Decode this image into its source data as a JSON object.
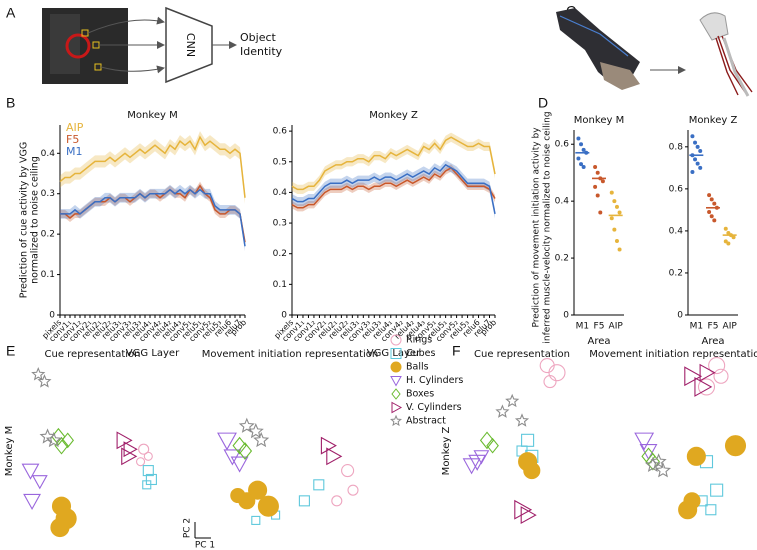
{
  "panel_labels": [
    "A",
    "B",
    "C",
    "D",
    "E",
    "F"
  ],
  "diagram_a": {
    "box_label": "CNN",
    "output": [
      "Object",
      "Identity"
    ]
  },
  "scale_bar": {
    "y": "PC 2",
    "x": "PC 1"
  },
  "legend": {
    "items": [
      {
        "name": "Rings",
        "color": "#eea6c0",
        "marker": "ring"
      },
      {
        "name": "Cubes",
        "color": "#5fc8dc",
        "marker": "square"
      },
      {
        "name": "Balls",
        "color": "#e0a820",
        "marker": "ball"
      },
      {
        "name": "H. Cylinders",
        "color": "#9a66dd",
        "marker": "tri-down"
      },
      {
        "name": "Boxes",
        "color": "#6abb30",
        "marker": "diamond"
      },
      {
        "name": "V. Cylinders",
        "color": "#a0206a",
        "marker": "tri-right"
      },
      {
        "name": "Abstract",
        "color": "#8c8c8c",
        "marker": "star"
      }
    ]
  },
  "chart_data": [
    {
      "type": "line",
      "title": "Monkey M",
      "xlabel": "VGG Layer",
      "ylabel": [
        "Prediction of cue activity by VGG",
        "normalized to noise ceiling"
      ],
      "categories": [
        "pixels",
        null,
        "conv1₁",
        null,
        "conv1₂",
        null,
        "conv2₁",
        null,
        "relu2₁",
        null,
        "relu2₂",
        null,
        "relu3₁",
        null,
        "conv3₃",
        null,
        "relu3₃",
        null,
        "relu4₁",
        null,
        "conv4₂",
        null,
        "relu4₂",
        null,
        "relu4₃",
        null,
        "conv5₁",
        null,
        "relu5₁",
        null,
        "conv5₂",
        null,
        "relu5₃",
        null,
        "relu6",
        null,
        "relu7",
        "prob"
      ],
      "series": [
        {
          "name": "AIP",
          "color": "#e6b43c",
          "spread": 0.015,
          "values": [
            0.33,
            0.34,
            0.34,
            0.35,
            0.35,
            0.36,
            0.37,
            0.38,
            0.38,
            0.38,
            0.39,
            0.38,
            0.39,
            0.4,
            0.39,
            0.4,
            0.41,
            0.4,
            0.41,
            0.42,
            0.41,
            0.4,
            0.42,
            0.41,
            0.43,
            0.42,
            0.43,
            0.41,
            0.44,
            0.42,
            0.43,
            0.42,
            0.41,
            0.41,
            0.4,
            0.41,
            0.4,
            0.29
          ]
        },
        {
          "name": "F5",
          "color": "#c8582c",
          "spread": 0.01,
          "values": [
            0.25,
            0.25,
            0.24,
            0.25,
            0.25,
            0.26,
            0.27,
            0.28,
            0.28,
            0.28,
            0.29,
            0.28,
            0.29,
            0.29,
            0.28,
            0.29,
            0.3,
            0.29,
            0.3,
            0.3,
            0.29,
            0.3,
            0.31,
            0.3,
            0.3,
            0.29,
            0.31,
            0.3,
            0.32,
            0.3,
            0.29,
            0.26,
            0.25,
            0.25,
            0.26,
            0.26,
            0.25,
            0.18
          ]
        },
        {
          "name": "M1",
          "color": "#3a6fc4",
          "spread": 0.012,
          "values": [
            0.25,
            0.25,
            0.25,
            0.26,
            0.25,
            0.26,
            0.27,
            0.28,
            0.28,
            0.29,
            0.29,
            0.28,
            0.29,
            0.29,
            0.29,
            0.29,
            0.3,
            0.29,
            0.3,
            0.3,
            0.3,
            0.3,
            0.31,
            0.3,
            0.31,
            0.3,
            0.31,
            0.3,
            0.31,
            0.3,
            0.3,
            0.27,
            0.26,
            0.26,
            0.26,
            0.26,
            0.25,
            0.17
          ]
        }
      ],
      "ylim": [
        0,
        0.47
      ],
      "yticks": [
        0,
        0.1,
        0.2,
        0.3,
        0.4
      ]
    },
    {
      "type": "line",
      "title": "Monkey Z",
      "xlabel": "VGG Layer",
      "categories": [
        "pixels",
        null,
        "conv1₁",
        null,
        "conv1₂",
        null,
        "conv2₁",
        null,
        "relu2₁",
        null,
        "relu2₂",
        null,
        "relu3₁",
        null,
        "conv3₃",
        null,
        "relu3₃",
        null,
        "relu4₁",
        null,
        "conv4₂",
        null,
        "relu4₂",
        null,
        "relu4₃",
        null,
        "conv5₁",
        null,
        "relu5₁",
        null,
        "conv5₂",
        null,
        "relu5₃",
        null,
        "relu6",
        null,
        "relu7",
        "prob"
      ],
      "series": [
        {
          "color": "#e6b43c",
          "spread": 0.015,
          "values": [
            0.42,
            0.41,
            0.41,
            0.42,
            0.42,
            0.44,
            0.47,
            0.48,
            0.49,
            0.49,
            0.5,
            0.5,
            0.51,
            0.51,
            0.5,
            0.52,
            0.52,
            0.51,
            0.53,
            0.52,
            0.53,
            0.54,
            0.53,
            0.52,
            0.55,
            0.54,
            0.56,
            0.54,
            0.57,
            0.58,
            0.57,
            0.56,
            0.55,
            0.55,
            0.56,
            0.55,
            0.55,
            0.46
          ]
        },
        {
          "color": "#c8582c",
          "spread": 0.012,
          "values": [
            0.36,
            0.35,
            0.35,
            0.36,
            0.36,
            0.38,
            0.4,
            0.41,
            0.41,
            0.41,
            0.42,
            0.41,
            0.42,
            0.42,
            0.41,
            0.42,
            0.42,
            0.43,
            0.43,
            0.42,
            0.43,
            0.44,
            0.43,
            0.44,
            0.45,
            0.44,
            0.46,
            0.45,
            0.47,
            0.48,
            0.46,
            0.44,
            0.42,
            0.42,
            0.42,
            0.42,
            0.41,
            0.38
          ]
        },
        {
          "color": "#3a6fc4",
          "spread": 0.015,
          "values": [
            0.38,
            0.37,
            0.37,
            0.38,
            0.38,
            0.4,
            0.42,
            0.43,
            0.43,
            0.43,
            0.44,
            0.43,
            0.44,
            0.44,
            0.44,
            0.45,
            0.44,
            0.45,
            0.45,
            0.44,
            0.45,
            0.46,
            0.45,
            0.46,
            0.47,
            0.46,
            0.48,
            0.47,
            0.49,
            0.48,
            0.47,
            0.45,
            0.43,
            0.43,
            0.43,
            0.43,
            0.42,
            0.33
          ]
        }
      ],
      "ylim": [
        0,
        0.62
      ],
      "yticks": [
        0,
        0.1,
        0.2,
        0.3,
        0.4,
        0.5,
        0.6
      ]
    },
    {
      "type": "strip",
      "title": "Monkey M",
      "xlabel": "Area",
      "ylabel": [
        "Prediction of movement initiation activity by",
        "inferred muscle-velocity normalized to noise ceiling"
      ],
      "categories": [
        "M1",
        "F5",
        "AIP"
      ],
      "colors": [
        "#3a6fc4",
        "#c8582c",
        "#e6b43c"
      ],
      "groups": [
        [
          0.62,
          0.6,
          0.58,
          0.57,
          0.55,
          0.53,
          0.52
        ],
        [
          0.52,
          0.5,
          0.48,
          0.47,
          0.45,
          0.42,
          0.36
        ],
        [
          0.43,
          0.4,
          0.38,
          0.36,
          0.34,
          0.3,
          0.26,
          0.23
        ]
      ],
      "medians": [
        0.57,
        0.48,
        0.35
      ],
      "ylim": [
        0,
        0.65
      ],
      "yticks": [
        0,
        0.2,
        0.4,
        0.6
      ]
    },
    {
      "type": "strip",
      "title": "Monkey Z",
      "xlabel": "Area",
      "categories": [
        "M1",
        "F5",
        "AIP"
      ],
      "colors": [
        "#3a6fc4",
        "#c8582c",
        "#e6b43c"
      ],
      "groups": [
        [
          0.85,
          0.82,
          0.8,
          0.78,
          0.76,
          0.74,
          0.72,
          0.7,
          0.68
        ],
        [
          0.57,
          0.55,
          0.53,
          0.51,
          0.49,
          0.47,
          0.45
        ],
        [
          0.41,
          0.39,
          0.38,
          0.37,
          0.35,
          0.34
        ]
      ],
      "medians": [
        0.76,
        0.51,
        0.38
      ],
      "ylim": [
        0,
        0.88
      ],
      "yticks": [
        0,
        0.2,
        0.4,
        0.6,
        0.8
      ]
    },
    {
      "type": "scatter",
      "title": "Cue representation",
      "ylabel": "Monkey M",
      "xlim": [
        0,
        100
      ],
      "ylim": [
        0,
        100
      ],
      "series": [
        {
          "x": [
            83,
            86,
            81
          ],
          "y": [
            51,
            47,
            44
          ],
          "size": [
            5,
            4,
            4
          ]
        },
        {
          "x": [
            86,
            88,
            85
          ],
          "y": [
            39,
            34,
            31
          ],
          "size": [
            5,
            5,
            4
          ]
        },
        {
          "x": [
            30,
            33,
            29
          ],
          "y": [
            19,
            12,
            7
          ],
          "size": [
            9,
            10,
            9
          ]
        },
        {
          "x": [
            10,
            16,
            11
          ],
          "y": [
            39,
            33,
            22
          ],
          "size": [
            8,
            7,
            8
          ]
        },
        {
          "x": [
            28,
            30,
            34
          ],
          "y": [
            58,
            53,
            56
          ],
          "size": [
            8,
            8,
            7
          ]
        },
        {
          "x": [
            70,
            73,
            74
          ],
          "y": [
            56,
            47,
            51
          ],
          "size": [
            8,
            8,
            7
          ]
        },
        {
          "x": [
            15,
            19,
            21,
            25
          ],
          "y": [
            93,
            89,
            58,
            56
          ],
          "size": [
            6,
            6,
            7,
            7
          ]
        }
      ]
    },
    {
      "type": "scatter",
      "title": "Movement initiation representation",
      "xlim": [
        0,
        100
      ],
      "ylim": [
        0,
        100
      ],
      "series": [
        {
          "x": [
            82,
            85,
            76
          ],
          "y": [
            39,
            28,
            22
          ],
          "size": [
            6,
            5,
            5
          ]
        },
        {
          "x": [
            66,
            58,
            42,
            31
          ],
          "y": [
            31,
            22,
            14,
            11
          ],
          "size": [
            5,
            5,
            4,
            4
          ]
        },
        {
          "x": [
            26,
            32,
            21,
            38
          ],
          "y": [
            22,
            28,
            25,
            19
          ],
          "size": [
            8,
            9,
            7,
            10
          ]
        },
        {
          "x": [
            15,
            18,
            22
          ],
          "y": [
            56,
            47,
            43
          ],
          "size": [
            9,
            8,
            8
          ]
        },
        {
          "x": [
            22,
            25
          ],
          "y": [
            53,
            50
          ],
          "size": [
            8,
            8
          ]
        },
        {
          "x": [
            71,
            74
          ],
          "y": [
            53,
            47
          ],
          "size": [
            8,
            8
          ]
        },
        {
          "x": [
            26,
            31,
            34
          ],
          "y": [
            64,
            61,
            56
          ],
          "size": [
            7,
            7,
            7
          ]
        }
      ]
    },
    {
      "type": "scatter",
      "title": "Cue representation",
      "ylabel": "Monkey Z",
      "xlim": [
        0,
        100
      ],
      "ylim": [
        0,
        100
      ],
      "series": [
        {
          "x": [
            68,
            75,
            70
          ],
          "y": [
            98,
            94,
            89
          ],
          "size": [
            7,
            8,
            6
          ]
        },
        {
          "x": [
            54,
            57,
            50
          ],
          "y": [
            56,
            47,
            50
          ],
          "size": [
            6,
            6,
            5
          ]
        },
        {
          "x": [
            54,
            57
          ],
          "y": [
            44,
            39
          ],
          "size": [
            9,
            8
          ]
        },
        {
          "x": [
            18,
            21,
            14
          ],
          "y": [
            44,
            47,
            42
          ],
          "size": [
            8,
            7,
            8
          ]
        },
        {
          "x": [
            25,
            29
          ],
          "y": [
            56,
            53
          ],
          "size": [
            8,
            7
          ]
        },
        {
          "x": [
            50,
            54
          ],
          "y": [
            17,
            14
          ],
          "size": [
            9,
            8
          ]
        },
        {
          "x": [
            36,
            43,
            50
          ],
          "y": [
            72,
            78,
            67
          ],
          "size": [
            6,
            6,
            6
          ]
        }
      ]
    },
    {
      "type": "scatter",
      "title": "Movement initiation representation",
      "xlim": [
        0,
        100
      ],
      "ylim": [
        0,
        100
      ],
      "series": [
        {
          "x": [
            77,
            80,
            70
          ],
          "y": [
            98,
            92,
            86
          ],
          "size": [
            8,
            7,
            8
          ]
        },
        {
          "x": [
            70,
            77,
            67,
            73
          ],
          "y": [
            44,
            28,
            22,
            17
          ],
          "size": [
            6,
            6,
            5,
            5
          ]
        },
        {
          "x": [
            90,
            63,
            60,
            57
          ],
          "y": [
            53,
            47,
            22,
            17
          ],
          "size": [
            10,
            9,
            8,
            9
          ]
        },
        {
          "x": [
            27,
            30
          ],
          "y": [
            56,
            50
          ],
          "size": [
            9,
            8
          ]
        },
        {
          "x": [
            30,
            33
          ],
          "y": [
            47,
            44
          ],
          "size": [
            8,
            8
          ]
        },
        {
          "x": [
            60,
            67,
            70
          ],
          "y": [
            92,
            86,
            94
          ],
          "size": [
            9,
            9,
            8
          ]
        },
        {
          "x": [
            33,
            40,
            37
          ],
          "y": [
            42,
            39,
            44
          ],
          "size": [
            7,
            7,
            7
          ]
        }
      ]
    }
  ]
}
